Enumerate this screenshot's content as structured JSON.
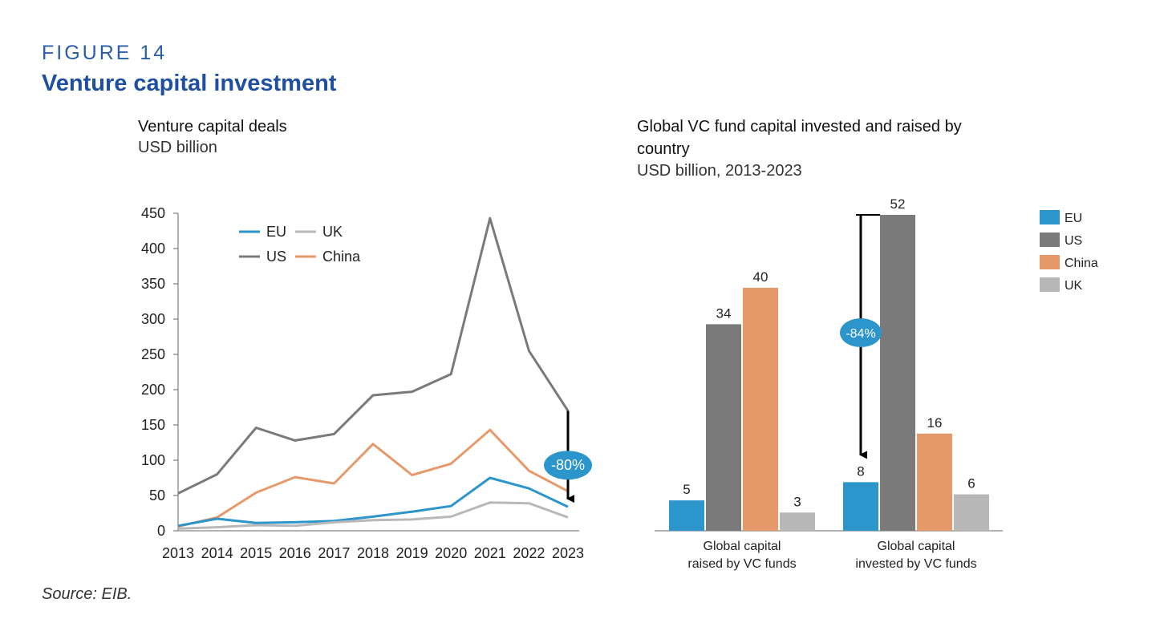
{
  "figure": {
    "label": "FIGURE 14",
    "title": "Venture capital investment",
    "source": "Source: EIB."
  },
  "colors": {
    "EU": "#2b95cc",
    "US": "#7a7a7a",
    "China": "#e69a6b",
    "UK": "#b8b8b8",
    "title_blue": "#1f4fa0",
    "badge": "#2b95cc"
  },
  "chart_data": [
    {
      "type": "line",
      "title": "Venture capital deals",
      "subtitle": "USD billion",
      "x": [
        "2013",
        "2014",
        "2015",
        "2016",
        "2017",
        "2018",
        "2019",
        "2020",
        "2021",
        "2022",
        "2023"
      ],
      "ylim": [
        0,
        450
      ],
      "yticks": [
        0,
        50,
        100,
        150,
        200,
        250,
        300,
        350,
        400,
        450
      ],
      "legend": [
        "EU",
        "UK",
        "US",
        "China"
      ],
      "legend_position": "top-left",
      "series": [
        {
          "name": "US",
          "values": [
            53,
            80,
            146,
            128,
            137,
            192,
            197,
            222,
            443,
            255,
            170
          ]
        },
        {
          "name": "China",
          "values": [
            6,
            19,
            54,
            76,
            67,
            123,
            79,
            95,
            143,
            85,
            56
          ]
        },
        {
          "name": "EU",
          "values": [
            7,
            17,
            11,
            12,
            14,
            20,
            27,
            35,
            75,
            60,
            34
          ]
        },
        {
          "name": "UK",
          "values": [
            3,
            5,
            8,
            7,
            12,
            15,
            16,
            20,
            40,
            39,
            19
          ]
        }
      ],
      "annotation": {
        "text": "-80%",
        "series": "US",
        "from_x": "2023",
        "from": 170,
        "to": 34
      }
    },
    {
      "type": "bar",
      "title": "Global VC fund capital invested and raised by country",
      "subtitle": "USD billion, 2013-2023",
      "categories": [
        "Global capital raised by VC funds",
        "Global capital invested by VC funds"
      ],
      "category_lines": [
        [
          "Global capital",
          "raised by VC funds"
        ],
        [
          "Global capital",
          "invested by VC funds"
        ]
      ],
      "ylim": [
        0,
        52
      ],
      "legend_position": "top-right",
      "series": [
        {
          "name": "EU",
          "values": [
            5,
            8
          ]
        },
        {
          "name": "US",
          "values": [
            34,
            52
          ]
        },
        {
          "name": "China",
          "values": [
            40,
            16
          ]
        },
        {
          "name": "UK",
          "values": [
            3,
            6
          ]
        }
      ],
      "annotation": {
        "text": "-84%",
        "category": 1,
        "from": 52,
        "to": 8
      }
    }
  ]
}
